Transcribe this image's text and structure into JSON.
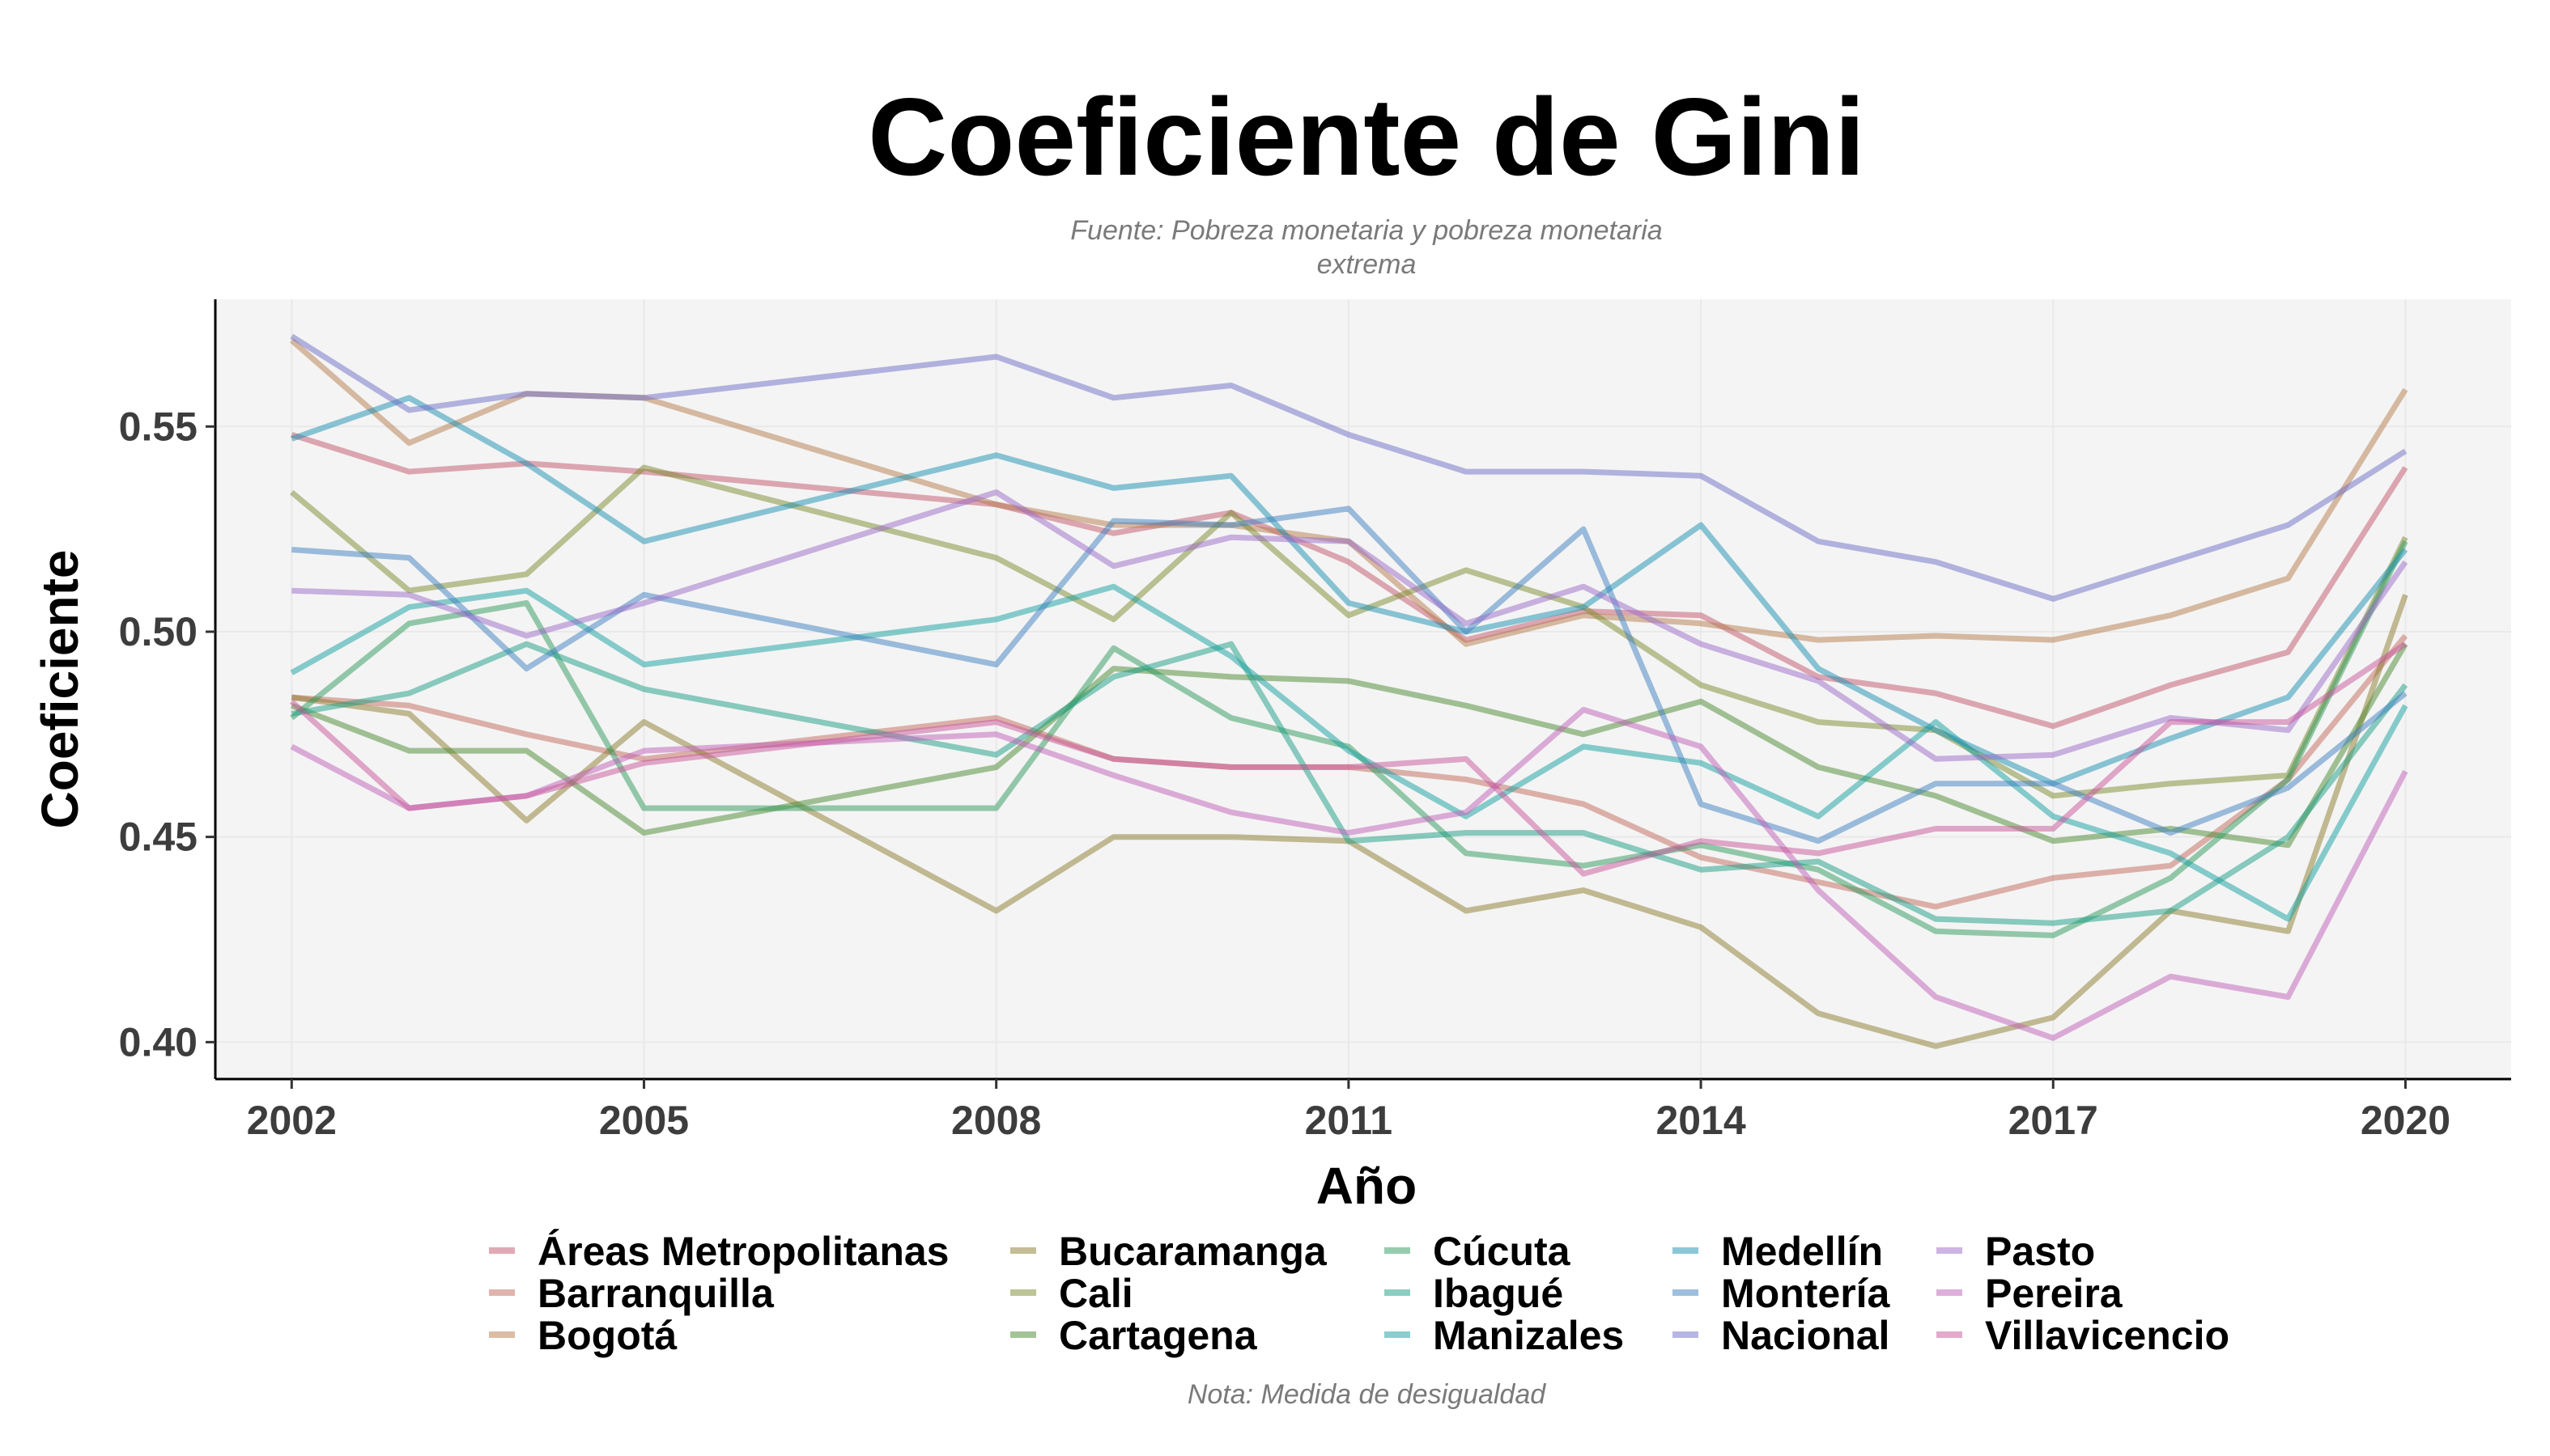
{
  "chart_data": {
    "type": "line",
    "title": "Coeficiente de Gini",
    "subtitle_lines": [
      "Fuente: Pobreza monetaria y pobreza monetaria",
      "extrema"
    ],
    "caption": "Nota: Medida de desigualdad",
    "xlabel": "Año",
    "ylabel": "Coeficiente",
    "xlim": [
      2001.35,
      2020.9
    ],
    "ylim": [
      0.391,
      0.581
    ],
    "x_ticks": [
      2002,
      2005,
      2008,
      2011,
      2014,
      2017,
      2020
    ],
    "x_tick_labels": [
      "2002",
      "2005",
      "2008",
      "2011",
      "2014",
      "2017",
      "2020"
    ],
    "y_ticks": [
      0.4,
      0.45,
      0.5,
      0.55
    ],
    "y_tick_labels": [
      "0.40",
      "0.45",
      "0.50",
      "0.55"
    ],
    "grid": true,
    "legend_position": "bottom",
    "x": [
      2002,
      2003,
      2004,
      2005,
      2008,
      2009,
      2010,
      2011,
      2012,
      2013,
      2014,
      2015,
      2016,
      2017,
      2018,
      2019,
      2020
    ],
    "series": [
      {
        "name": "Áreas Metropolitanas",
        "color": "#c2566c",
        "values": [
          0.548,
          0.539,
          0.541,
          0.539,
          0.531,
          0.524,
          0.529,
          0.517,
          0.498,
          0.505,
          0.504,
          0.489,
          0.485,
          0.477,
          0.487,
          0.495,
          0.54
        ]
      },
      {
        "name": "Barranquilla",
        "color": "#c26a5c",
        "values": [
          0.484,
          0.482,
          0.475,
          0.469,
          0.479,
          0.469,
          0.467,
          0.467,
          0.464,
          0.458,
          0.445,
          0.439,
          0.433,
          0.44,
          0.443,
          0.464,
          0.499
        ]
      },
      {
        "name": "Bogotá",
        "color": "#b57c4c",
        "values": [
          0.571,
          0.546,
          0.558,
          0.557,
          0.531,
          0.526,
          0.526,
          0.522,
          0.497,
          0.504,
          0.502,
          0.498,
          0.499,
          0.498,
          0.504,
          0.513,
          0.559
        ]
      },
      {
        "name": "Bucaramanga",
        "color": "#8c7c2e",
        "values": [
          0.484,
          0.48,
          0.454,
          0.478,
          0.432,
          0.45,
          0.45,
          0.449,
          0.432,
          0.437,
          0.428,
          0.407,
          0.399,
          0.406,
          0.432,
          0.427,
          0.509
        ]
      },
      {
        "name": "Cali",
        "color": "#7c8a2e",
        "values": [
          0.534,
          0.51,
          0.514,
          0.54,
          0.518,
          0.503,
          0.529,
          0.504,
          0.515,
          0.506,
          0.487,
          0.478,
          0.476,
          0.46,
          0.463,
          0.465,
          0.523
        ]
      },
      {
        "name": "Cartagena",
        "color": "#4a8a32",
        "values": [
          0.482,
          0.471,
          0.471,
          0.451,
          0.467,
          0.491,
          0.489,
          0.488,
          0.482,
          0.475,
          0.483,
          0.467,
          0.46,
          0.449,
          0.452,
          0.448,
          0.497
        ]
      },
      {
        "name": "Cúcuta",
        "color": "#2e9a5c",
        "values": [
          0.479,
          0.502,
          0.507,
          0.457,
          0.457,
          0.496,
          0.479,
          0.472,
          0.446,
          0.443,
          0.448,
          0.442,
          0.427,
          0.426,
          0.44,
          0.464,
          0.522
        ]
      },
      {
        "name": "Ibagué",
        "color": "#1a9e84",
        "values": [
          0.48,
          0.485,
          0.497,
          0.486,
          0.47,
          0.489,
          0.497,
          0.449,
          0.451,
          0.451,
          0.442,
          0.444,
          0.43,
          0.429,
          0.432,
          0.45,
          0.487
        ]
      },
      {
        "name": "Manizales",
        "color": "#16a0a0",
        "values": [
          0.49,
          0.506,
          0.51,
          0.492,
          0.503,
          0.511,
          0.494,
          0.471,
          0.455,
          0.472,
          0.468,
          0.455,
          0.478,
          0.455,
          0.446,
          0.43,
          0.482
        ]
      },
      {
        "name": "Medellín",
        "color": "#1a8fb2",
        "values": [
          0.547,
          0.557,
          0.541,
          0.522,
          0.543,
          0.535,
          0.538,
          0.507,
          0.5,
          0.506,
          0.526,
          0.491,
          0.476,
          0.463,
          0.474,
          0.484,
          0.52
        ]
      },
      {
        "name": "Montería",
        "color": "#3d7fc0",
        "values": [
          0.52,
          0.518,
          0.491,
          0.509,
          0.492,
          0.527,
          0.526,
          0.53,
          0.5,
          0.525,
          0.458,
          0.449,
          0.463,
          0.463,
          0.451,
          0.462,
          0.485
        ]
      },
      {
        "name": "Nacional",
        "color": "#6d6dc8",
        "values": [
          0.572,
          0.554,
          0.558,
          0.557,
          0.567,
          0.557,
          0.56,
          0.548,
          0.539,
          0.539,
          0.538,
          0.522,
          0.517,
          0.508,
          0.517,
          0.526,
          0.544
        ]
      },
      {
        "name": "Pasto",
        "color": "#9a6ac8",
        "values": [
          0.51,
          0.509,
          0.499,
          0.507,
          0.534,
          0.516,
          0.523,
          0.522,
          0.502,
          0.511,
          0.497,
          0.488,
          0.469,
          0.47,
          0.479,
          0.476,
          0.517
        ]
      },
      {
        "name": "Pereira",
        "color": "#c060b8",
        "values": [
          0.472,
          0.457,
          0.46,
          0.471,
          0.475,
          0.465,
          0.456,
          0.451,
          0.456,
          0.481,
          0.472,
          0.437,
          0.411,
          0.401,
          0.416,
          0.411,
          0.466
        ]
      },
      {
        "name": "Villavicencio",
        "color": "#c8569a",
        "values": [
          0.483,
          0.457,
          0.46,
          0.468,
          0.478,
          0.469,
          0.467,
          0.467,
          0.469,
          0.441,
          0.449,
          0.446,
          0.452,
          0.452,
          0.478,
          0.478,
          0.497
        ]
      }
    ]
  }
}
